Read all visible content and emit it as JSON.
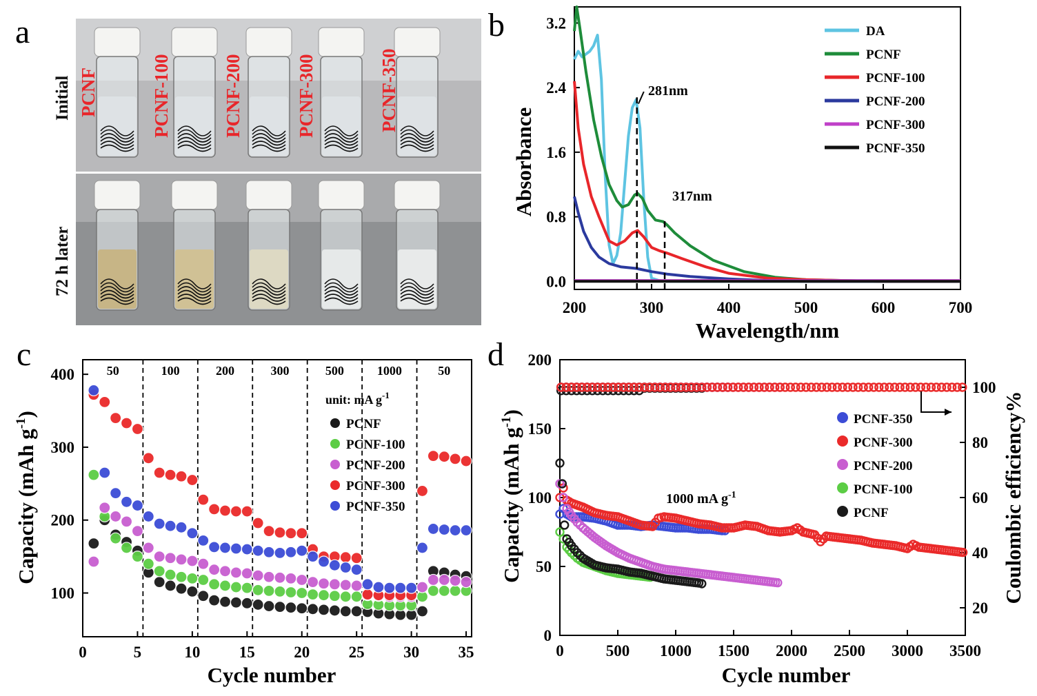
{
  "chart_data": [
    {
      "panel": "a",
      "type": "image",
      "row_labels": [
        "Initial",
        "72 h later"
      ],
      "vial_labels": [
        "PCNF",
        "PCNF-100",
        "PCNF-200",
        "PCNF-300",
        "PCNF-350"
      ]
    },
    {
      "panel": "b",
      "type": "line",
      "xlabel": "Wavelength/nm",
      "ylabel": "Absorbance",
      "xlim": [
        200,
        700
      ],
      "ylim": [
        -0.1,
        3.4
      ],
      "xticks": [
        200,
        300,
        400,
        500,
        600,
        700
      ],
      "yticks": [
        0.0,
        0.8,
        1.6,
        2.4,
        3.2
      ],
      "annotations": [
        {
          "text": "281nm",
          "x": 281
        },
        {
          "text": "317nm",
          "x": 317
        }
      ],
      "series": [
        {
          "name": "DA",
          "color": "#5ec4e2",
          "x": [
            200,
            205,
            210,
            220,
            225,
            230,
            235,
            240,
            245,
            250,
            255,
            260,
            265,
            270,
            275,
            280,
            285,
            290,
            295,
            300,
            310,
            320,
            350,
            400,
            450,
            500,
            600,
            700
          ],
          "y": [
            2.75,
            2.85,
            2.78,
            2.85,
            2.92,
            3.05,
            2.5,
            1.3,
            0.45,
            0.22,
            0.32,
            0.6,
            1.2,
            1.8,
            2.15,
            2.25,
            1.9,
            1.0,
            0.3,
            0.04,
            0.01,
            0.0,
            0.0,
            0.0,
            0.0,
            0.0,
            0.0,
            0.0
          ]
        },
        {
          "name": "PCNF",
          "color": "#1e8c3a",
          "x": [
            200,
            203,
            207,
            215,
            225,
            235,
            245,
            255,
            262,
            270,
            278,
            282,
            288,
            295,
            305,
            315,
            320,
            330,
            350,
            380,
            420,
            460,
            500,
            550,
            600,
            700
          ],
          "y": [
            3.1,
            3.4,
            3.15,
            2.6,
            2.0,
            1.55,
            1.2,
            1.0,
            0.92,
            0.95,
            1.07,
            1.09,
            1.03,
            0.88,
            0.76,
            0.74,
            0.7,
            0.6,
            0.44,
            0.26,
            0.12,
            0.05,
            0.02,
            0.01,
            0.0,
            0.0
          ]
        },
        {
          "name": "PCNF-100",
          "color": "#e8262a",
          "x": [
            200,
            205,
            212,
            222,
            232,
            245,
            255,
            265,
            275,
            282,
            290,
            300,
            310,
            320,
            340,
            370,
            400,
            450,
            500,
            600,
            700
          ],
          "y": [
            2.48,
            1.9,
            1.45,
            1.05,
            0.8,
            0.5,
            0.45,
            0.5,
            0.6,
            0.63,
            0.55,
            0.42,
            0.38,
            0.35,
            0.28,
            0.18,
            0.1,
            0.04,
            0.02,
            0.0,
            0.0
          ]
        },
        {
          "name": "PCNF-200",
          "color": "#2b3a9e",
          "x": [
            200,
            205,
            212,
            222,
            232,
            245,
            260,
            280,
            300,
            320,
            350,
            400,
            450,
            500,
            700
          ],
          "y": [
            1.05,
            0.85,
            0.62,
            0.42,
            0.3,
            0.22,
            0.18,
            0.16,
            0.12,
            0.09,
            0.06,
            0.03,
            0.01,
            0.0,
            0.0
          ]
        },
        {
          "name": "PCNF-300",
          "color": "#c040c8",
          "x": [
            200,
            300,
            400,
            500,
            600,
            700
          ],
          "y": [
            0.01,
            0.01,
            0.01,
            0.01,
            0.01,
            0.01
          ]
        },
        {
          "name": "PCNF-350",
          "color": "#111111",
          "x": [
            200,
            300,
            400,
            500,
            600,
            700
          ],
          "y": [
            0.0,
            0.0,
            0.0,
            0.0,
            0.0,
            0.0
          ]
        }
      ]
    },
    {
      "panel": "c",
      "type": "scatter",
      "xlabel": "Cycle number",
      "ylabel": "Capacity (mAh g",
      "ylabel_sup": "-1",
      "ylabel_end": ")",
      "xlim": [
        0,
        35.5
      ],
      "ylim": [
        40,
        420
      ],
      "xticks": [
        0,
        5,
        10,
        15,
        20,
        25,
        30,
        35
      ],
      "yticks": [
        100,
        200,
        300,
        400
      ],
      "unit_label": "unit: mA g",
      "unit_sup": "-1",
      "rates": [
        "50",
        "100",
        "200",
        "300",
        "500",
        "1000",
        "50"
      ],
      "dividers": [
        5.5,
        10.5,
        15.5,
        20.5,
        25.5,
        30.5
      ],
      "series": [
        {
          "name": "PCNF",
          "color": "#1a1a1a",
          "values": [
            168,
            200,
            180,
            170,
            158,
            128,
            115,
            110,
            106,
            102,
            96,
            90,
            88,
            87,
            86,
            84,
            82,
            81,
            80,
            79,
            78,
            77,
            76,
            75,
            75,
            74,
            72,
            71,
            70,
            70,
            75,
            130,
            128,
            125,
            123
          ]
        },
        {
          "name": "PCNF-100",
          "color": "#5ccd45",
          "values": [
            262,
            205,
            175,
            162,
            150,
            140,
            130,
            125,
            122,
            120,
            118,
            112,
            110,
            108,
            107,
            104,
            103,
            102,
            101,
            100,
            98,
            97,
            96,
            95,
            95,
            85,
            84,
            83,
            83,
            83,
            95,
            103,
            103,
            103,
            103
          ]
        },
        {
          "name": "PCNF-200",
          "color": "#c85ed0",
          "values": [
            143,
            217,
            205,
            198,
            185,
            162,
            150,
            148,
            146,
            144,
            140,
            132,
            130,
            128,
            127,
            124,
            122,
            121,
            120,
            118,
            115,
            113,
            112,
            111,
            110,
            97,
            96,
            95,
            95,
            95,
            108,
            118,
            118,
            117,
            115
          ]
        },
        {
          "name": "PCNF-300",
          "color": "#ea2a2a",
          "values": [
            372,
            362,
            340,
            333,
            325,
            285,
            265,
            262,
            260,
            255,
            228,
            215,
            213,
            212,
            212,
            196,
            185,
            183,
            182,
            182,
            160,
            150,
            150,
            149,
            148,
            98,
            97,
            97,
            97,
            97,
            240,
            288,
            287,
            284,
            281
          ]
        },
        {
          "name": "PCNF-350",
          "color": "#3c4cd6",
          "values": [
            378,
            265,
            237,
            225,
            220,
            205,
            195,
            192,
            190,
            182,
            172,
            163,
            162,
            161,
            160,
            158,
            156,
            155,
            156,
            158,
            150,
            143,
            138,
            135,
            132,
            112,
            108,
            107,
            107,
            107,
            162,
            188,
            187,
            186,
            186
          ]
        }
      ]
    },
    {
      "panel": "d",
      "type": "scatter",
      "xlabel": "Cycle number",
      "ylabel": "Capacity (mAh g",
      "ylabel_sup": "-1",
      "ylabel_end": ")",
      "y2label": "Coulombic efficiency%",
      "xlim": [
        0,
        3500
      ],
      "ylim": [
        0,
        200
      ],
      "y2lim": [
        10,
        110
      ],
      "xticks": [
        0,
        500,
        1000,
        1500,
        2000,
        2500,
        3000,
        3500
      ],
      "yticks": [
        0,
        50,
        100,
        150,
        200
      ],
      "y2ticks": [
        20,
        40,
        60,
        80,
        100
      ],
      "rate_label": "1000 mA g",
      "rate_sup": "-1",
      "series": [
        {
          "name": "PCNF-350",
          "color": "#3c4cd6",
          "x": [
            0,
            30,
            60,
            100,
            200,
            300,
            400,
            500,
            600,
            700,
            800,
            900,
            1000,
            1100,
            1200,
            1300,
            1400,
            1450
          ],
          "y": [
            88,
            92,
            88,
            86,
            86,
            85,
            83,
            80,
            80,
            79,
            80,
            79,
            78,
            78,
            77,
            77,
            76,
            76
          ]
        },
        {
          "name": "PCNF-300",
          "color": "#ea2a2a",
          "x": [
            0,
            30,
            60,
            100,
            200,
            300,
            400,
            500,
            600,
            700,
            800,
            850,
            900,
            1000,
            1100,
            1200,
            1300,
            1400,
            1500,
            1600,
            1700,
            1800,
            1900,
            2000,
            2050,
            2100,
            2200,
            2250,
            2300,
            2400,
            2500,
            2600,
            2700,
            2800,
            2900,
            3000,
            3050,
            3100,
            3200,
            3300,
            3400,
            3500
          ],
          "y": [
            100,
            107,
            98,
            96,
            93,
            89,
            87,
            86,
            83,
            80,
            79,
            85,
            86,
            85,
            83,
            81,
            80,
            78,
            78,
            80,
            79,
            76,
            75,
            76,
            78,
            75,
            73,
            68,
            72,
            71,
            70,
            69,
            67,
            66,
            65,
            63,
            66,
            64,
            63,
            62,
            61,
            60
          ]
        },
        {
          "name": "PCNF-200",
          "color": "#c85ed0",
          "x": [
            0,
            30,
            60,
            100,
            150,
            200,
            300,
            400,
            500,
            600,
            700,
            800,
            900,
            1000,
            1100,
            1200,
            1300,
            1400,
            1500,
            1600,
            1700,
            1800,
            1900
          ],
          "y": [
            110,
            100,
            92,
            87,
            82,
            78,
            71,
            65,
            60,
            56,
            53,
            50,
            48,
            47,
            46,
            45,
            44,
            43,
            42,
            41,
            40,
            39,
            38
          ]
        },
        {
          "name": "PCNF-100",
          "color": "#5ccd45",
          "x": [
            0,
            30,
            60,
            100,
            150,
            200,
            300,
            400,
            500,
            600,
            700,
            800
          ],
          "y": [
            75,
            70,
            64,
            60,
            56,
            53,
            50,
            47,
            45,
            44,
            43,
            42
          ]
        },
        {
          "name": "PCNF",
          "color": "#1a1a1a",
          "x": [
            0,
            20,
            40,
            60,
            100,
            150,
            200,
            300,
            400,
            500,
            600,
            700,
            800,
            900,
            1000,
            1100,
            1200,
            1250
          ],
          "y": [
            125,
            110,
            80,
            70,
            65,
            60,
            56,
            51,
            49,
            48,
            46,
            45,
            43,
            41,
            40,
            39,
            38,
            37
          ]
        }
      ],
      "efficiency": {
        "value": 100,
        "color_order": [
          "PCNF-350",
          "PCNF",
          "PCNF-100",
          "PCNF-200",
          "PCNF-300"
        ],
        "x_end": [
          1450,
          1250,
          800,
          1900,
          3500
        ]
      }
    }
  ]
}
